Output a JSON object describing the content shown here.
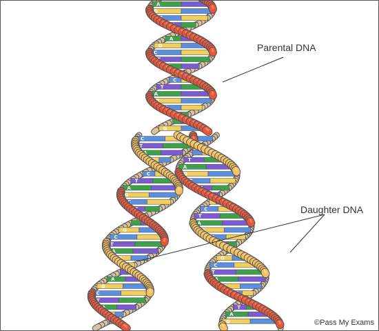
{
  "labels": {
    "parental": "Parental DNA",
    "daughter": "Daughter DNA",
    "credit": "©Pass My Exams"
  },
  "colors": {
    "outline": "#555555",
    "parental_strand_front": "#e8553a",
    "parental_strand_light": "#f39a6a",
    "backbone_back": "#d9c3a0",
    "daughter_strand_front": "#f5c060",
    "daughter_strand_light": "#fbe2a6",
    "leader_line": "#333333",
    "bases": {
      "A": "#3aa34a",
      "T": "#7b5ad6",
      "C": "#5b8fe0",
      "G": "#f0cf5c"
    }
  }
}
